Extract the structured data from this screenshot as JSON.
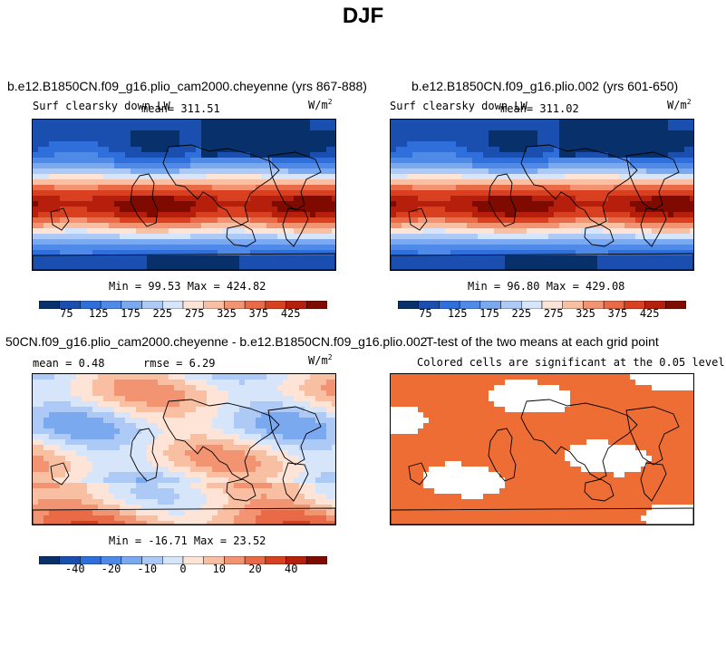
{
  "figure": {
    "title": "DJF"
  },
  "colors": {
    "blue_red_12": [
      "#08306b",
      "#1a4fb0",
      "#2f6fdc",
      "#4f8ae8",
      "#7aa9f0",
      "#adc9f6",
      "#d7e5fb",
      "#fde4d7",
      "#f9bfa3",
      "#f29471",
      "#e96a47",
      "#d8401f",
      "#b51f0b",
      "#7f0a00"
    ],
    "signif": "#ed6d35"
  },
  "panels": [
    {
      "id": "p1",
      "title": "b.e12.B1850CN.f09_g16.plio_cam2000.cheyenne (yrs 867-888)",
      "left_label": "Surf clearsky down LW",
      "center_label": "mean= 311.51",
      "units": "W/m",
      "units_exp": "2",
      "minmax": "Min =  99.53 Max = 424.82",
      "colorbar_ticks": [
        "75",
        "125",
        "175",
        "225",
        "275",
        "325",
        "375",
        "425"
      ]
    },
    {
      "id": "p2",
      "title": "b.e12.B1850CN.f09_g16.plio.002 (yrs 601-650)",
      "left_label": "Surf clearsky down LW",
      "center_label": "mean= 311.02",
      "units": "W/m",
      "units_exp": "2",
      "minmax": "Min =  96.80 Max = 429.08",
      "colorbar_ticks": [
        "75",
        "125",
        "175",
        "225",
        "275",
        "325",
        "375",
        "425"
      ]
    },
    {
      "id": "p3",
      "title": "50CN.f09_g16.plio_cam2000.cheyenne - b.e12.B1850CN.f09_g16.plio.002",
      "mean_text": "mean =   0.48",
      "rmse_text": "rmse =   6.29",
      "units": "W/m",
      "units_exp": "2",
      "minmax": "Min = -16.71 Max =  23.52",
      "colorbar_ticks": [
        "-40",
        "-20",
        "-10",
        "0",
        "10",
        "20",
        "40"
      ]
    },
    {
      "id": "p4",
      "title": "T-test of the two means at each grid point",
      "subtitle": "Colored cells are significant at the 0.05 level"
    }
  ],
  "chart_data": [
    {
      "type": "heatmap",
      "title": "b.e12.B1850CN.f09_g16.plio_cam2000.cheyenne (yrs 867-888)",
      "variable": "Surf clearsky down LW",
      "units": "W/m^2",
      "mean": 311.51,
      "min": 99.53,
      "max": 424.82,
      "colorbar": [
        75,
        125,
        175,
        225,
        275,
        325,
        375,
        425
      ]
    },
    {
      "type": "heatmap",
      "title": "b.e12.B1850CN.f09_g16.plio.002 (yrs 601-650)",
      "variable": "Surf clearsky down LW",
      "units": "W/m^2",
      "mean": 311.02,
      "min": 96.8,
      "max": 429.08,
      "colorbar": [
        75,
        125,
        175,
        225,
        275,
        325,
        375,
        425
      ]
    },
    {
      "type": "heatmap",
      "title": "50CN.f09_g16.plio_cam2000.cheyenne - b.e12.B1850CN.f09_g16.plio.002",
      "units": "W/m^2",
      "mean": 0.48,
      "rmse": 6.29,
      "min": -16.71,
      "max": 23.52,
      "colorbar": [
        -40,
        -20,
        -10,
        0,
        10,
        20,
        40
      ]
    },
    {
      "type": "heatmap",
      "title": "T-test of the two means at each grid point",
      "subtitle": "Colored cells are significant at the 0.05 level"
    }
  ]
}
